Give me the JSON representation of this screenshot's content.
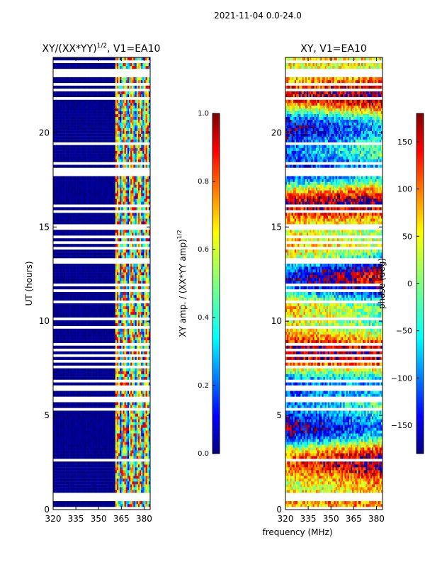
{
  "figure_title": "2021-11-04 0.0-24.0",
  "shared_xlabel": "frequency (MHz)",
  "colors": {
    "jet": [
      "#00007f",
      "#0000ff",
      "#007fff",
      "#00ffff",
      "#7fff7f",
      "#ffff00",
      "#ff7f00",
      "#ff0000",
      "#7f0000"
    ],
    "gap": "#ffffff"
  },
  "chart_data": [
    {
      "type": "heatmap",
      "title_main": "XY/(XX*YY)",
      "title_sup": "1/2",
      "title_rest": ", V1=EA10",
      "ylabel": "UT (hours)",
      "xlabel": "frequency (MHz)",
      "xlim": [
        320,
        384
      ],
      "ylim": [
        0,
        24
      ],
      "xticks": [
        320,
        335,
        350,
        365,
        380
      ],
      "yticks": [
        0,
        5,
        10,
        15,
        20
      ],
      "colorbar": {
        "label_main": "XY amp. / (XX*YY amp)",
        "label_sup": "1/2",
        "range": [
          0.0,
          1.0
        ],
        "ticks": [
          "0.0",
          "0.2",
          "0.4",
          "0.6",
          "0.8",
          "1.0"
        ]
      },
      "description_values": {
        "band_low_freq_value": 0.0,
        "band_high_freq_range_mhz": [
          361,
          383
        ],
        "band_high_freq_value_range": [
          0.2,
          0.9
        ]
      }
    },
    {
      "type": "heatmap",
      "title_main": "XY, V1=EA10",
      "ylabel": "",
      "xlabel": "frequency (MHz)",
      "xlim": [
        320,
        384
      ],
      "ylim": [
        0,
        24
      ],
      "xticks": [
        320,
        335,
        350,
        365,
        380
      ],
      "yticks": [
        0,
        5,
        10,
        15,
        20
      ],
      "colorbar": {
        "label_main": "phase (deg)",
        "range": [
          -180,
          180
        ],
        "ticks": [
          "−150",
          "−100",
          "−50",
          "0",
          "50",
          "100",
          "150"
        ],
        "tick_values": [
          -150,
          -100,
          -50,
          0,
          50,
          100,
          150
        ]
      }
    }
  ]
}
